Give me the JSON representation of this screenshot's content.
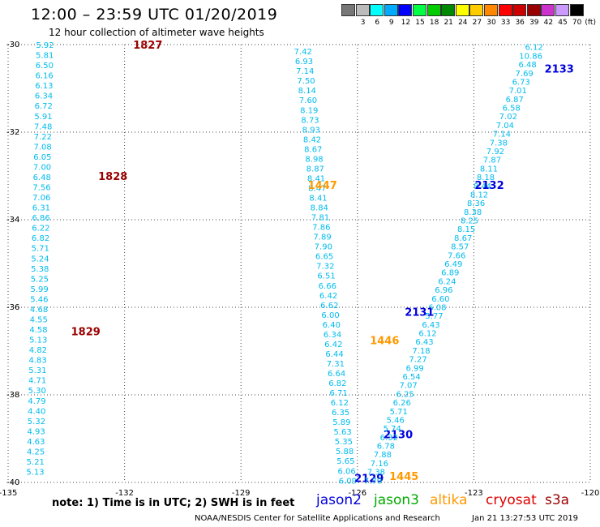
{
  "header": {
    "title": "12:00 – 23:59 UTC 01/20/2019",
    "subtitle": "12 hour collection of altimeter wave heights"
  },
  "colorbar": {
    "unit": "(ft)",
    "entries": [
      {
        "label": "",
        "color": "#777777"
      },
      {
        "label": "3",
        "color": "#bbbbbb"
      },
      {
        "label": "6",
        "color": "#00ffff"
      },
      {
        "label": "9",
        "color": "#00aaff"
      },
      {
        "label": "12",
        "color": "#0000ff"
      },
      {
        "label": "15",
        "color": "#00ff44"
      },
      {
        "label": "18",
        "color": "#00cc00"
      },
      {
        "label": "21",
        "color": "#008800"
      },
      {
        "label": "24",
        "color": "#ffff00"
      },
      {
        "label": "27",
        "color": "#ffcc00"
      },
      {
        "label": "30",
        "color": "#ff8800"
      },
      {
        "label": "33",
        "color": "#ff0000"
      },
      {
        "label": "36",
        "color": "#cc0000"
      },
      {
        "label": "39",
        "color": "#990000"
      },
      {
        "label": "42",
        "color": "#cc33cc"
      },
      {
        "label": "45",
        "color": "#cc99ff"
      },
      {
        "label": "70",
        "color": "#000000"
      }
    ]
  },
  "note": "note: 1) Time is in UTC; 2) SWH is in feet",
  "satellites": [
    {
      "name": "jason2",
      "color": "#0000dd"
    },
    {
      "name": "jason3",
      "color": "#00aa00"
    },
    {
      "name": "altika",
      "color": "#ff9900"
    },
    {
      "name": "cryosat",
      "color": "#dd0000"
    },
    {
      "name": "s3a",
      "color": "#990000"
    }
  ],
  "credit": "NOAA/NESDIS Center for Satellite Applications and Research",
  "timestamp": "Jan 21 13:27:53 UTC 2019",
  "chart_data": {
    "type": "scatter",
    "xlim": [
      -135,
      -120
    ],
    "ylim": [
      -40,
      -30
    ],
    "x_ticks": [
      "-135",
      "-132",
      "-129",
      "-126",
      "-123",
      "-120"
    ],
    "y_ticks": [
      "-30",
      "-32",
      "-34",
      "-36",
      "-38",
      "-40"
    ],
    "grid": "dotted",
    "value_color": "#00bbee",
    "tracks": [
      {
        "values": [
          "5.92",
          "5.81",
          "6.50",
          "6.16",
          "6.13",
          "6.34",
          "6.72",
          "5.91",
          "7.48",
          "7.22",
          "7.08",
          "6.05",
          "7.00",
          "6.48",
          "7.56",
          "7.06",
          "6.31",
          "6.86",
          "6.22",
          "6.82",
          "5.71",
          "5.24",
          "5.38",
          "5.25",
          "5.99",
          "5.46",
          "4.68",
          "4.55",
          "4.58",
          "5.13",
          "4.82",
          "4.83",
          "5.31",
          "4.71",
          "5.30",
          "4.79",
          "4.40",
          "5.32",
          "4.93",
          "4.63",
          "4.25",
          "5.21",
          "5.13"
        ],
        "x_start": -134.05,
        "y_start": -30.0,
        "x_end": -134.3,
        "y_end": -39.75,
        "labels": [
          {
            "text": "1827",
            "color": "#990000",
            "x": -131.4,
            "y": -30.0
          },
          {
            "text": "1828",
            "color": "#990000",
            "x": -132.3,
            "y": -33.0
          },
          {
            "text": "1829",
            "color": "#990000",
            "x": -133.0,
            "y": -36.55
          }
        ]
      },
      {
        "values": [
          "7.42",
          "6.93",
          "7.14",
          "7.50",
          "8.14",
          "7.60",
          "8.19",
          "8.73",
          "8.93",
          "8.42",
          "8.67",
          "8.98",
          "8.87",
          "8.41",
          "8.47",
          "8.41",
          "8.84",
          "7.81",
          "7.86",
          "7.89",
          "7.90",
          "6.65",
          "7.32",
          "6.51",
          "6.66",
          "6.42",
          "6.62",
          "6.00",
          "6.40",
          "6.34",
          "6.42",
          "6.44",
          "7.31",
          "6.64",
          "6.82",
          "6.71",
          "6.12",
          "6.35",
          "5.89",
          "5.63",
          "5.35",
          "5.88",
          "5.65",
          "6.06",
          "6.09"
        ],
        "x_start": -127.4,
        "y_start": -30.15,
        "x_end": -126.25,
        "y_end": -39.95,
        "labels": [
          {
            "text": "1447",
            "color": "#ff9900",
            "x": -126.9,
            "y": -33.2
          },
          {
            "text": "1446",
            "color": "#ff9900",
            "x": -125.3,
            "y": -36.75
          },
          {
            "text": "2130",
            "color": "#0000dd",
            "x": -124.95,
            "y": -38.9
          },
          {
            "text": "2129",
            "color": "#0000dd",
            "x": -125.7,
            "y": -39.9
          }
        ]
      },
      {
        "values": [
          "6.12",
          "10.86",
          "6.48",
          "7.69",
          "6.73",
          "7.01",
          "6.87",
          "6.58",
          "7.02",
          "7.04",
          "7.14",
          "7.38",
          "7.92",
          "7.87",
          "8.11",
          "8.18",
          "8.44",
          "8.12",
          "8.36",
          "8.38",
          "8.25",
          "8.15",
          "8.67",
          "8.57",
          "7.66",
          "6.49",
          "6.89",
          "6.24",
          "6.96",
          "6.60",
          "6.08",
          "5.77",
          "6.43",
          "6.12",
          "6.43",
          "7.18",
          "7.27",
          "6.99",
          "6.54",
          "7.07",
          "6.25",
          "6.26",
          "5.71",
          "5.46",
          "5.74",
          "6.32",
          "6.78",
          "7.88",
          "7.16",
          "7.38",
          "7.70"
        ],
        "x_start": -121.45,
        "y_start": -30.05,
        "x_end": -125.6,
        "y_end": -39.95,
        "labels": [
          {
            "text": "2133",
            "color": "#0000dd",
            "x": -120.8,
            "y": -30.55
          },
          {
            "text": "2132",
            "color": "#0000dd",
            "x": -122.6,
            "y": -33.2
          },
          {
            "text": "2131",
            "color": "#0000dd",
            "x": -124.4,
            "y": -36.1
          },
          {
            "text": "1445",
            "color": "#ff9900",
            "x": -124.8,
            "y": -39.85
          }
        ]
      }
    ]
  }
}
